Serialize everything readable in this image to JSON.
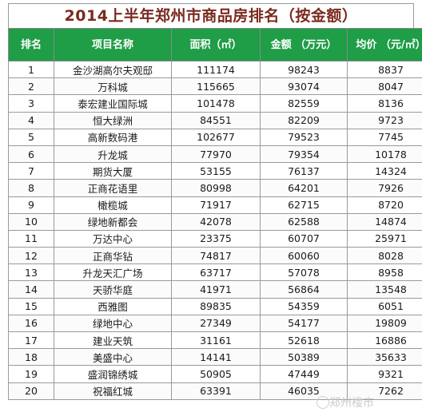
{
  "title": "2014上半年郑州市商品房排名（按金额）",
  "columns": {
    "rank": "排名",
    "name": "项目名称",
    "area": "面积（㎡）",
    "amount": "金额 （万元）",
    "avg": "均价 （元/㎡）"
  },
  "rows": [
    {
      "rank": "1",
      "name": "金沙湖高尔夫观邸",
      "area": "111174",
      "amount": "98243",
      "avg": "8837"
    },
    {
      "rank": "2",
      "name": "万科城",
      "area": "115665",
      "amount": "93074",
      "avg": "8047"
    },
    {
      "rank": "3",
      "name": "泰宏建业国际城",
      "area": "101478",
      "amount": "82559",
      "avg": "8136"
    },
    {
      "rank": "4",
      "name": "恒大绿洲",
      "area": "84551",
      "amount": "82209",
      "avg": "9723"
    },
    {
      "rank": "5",
      "name": "高新数码港",
      "area": "102677",
      "amount": "79523",
      "avg": "7745"
    },
    {
      "rank": "6",
      "name": "升龙城",
      "area": "77970",
      "amount": "79354",
      "avg": "10178"
    },
    {
      "rank": "7",
      "name": "期货大厦",
      "area": "53155",
      "amount": "76137",
      "avg": "14324"
    },
    {
      "rank": "8",
      "name": "正商花语里",
      "area": "80998",
      "amount": "64201",
      "avg": "7926"
    },
    {
      "rank": "9",
      "name": "橄榄城",
      "area": "71917",
      "amount": "62715",
      "avg": "8720"
    },
    {
      "rank": "10",
      "name": "绿地新都会",
      "area": "42078",
      "amount": "62588",
      "avg": "14874"
    },
    {
      "rank": "11",
      "name": "万达中心",
      "area": "23375",
      "amount": "60707",
      "avg": "25971"
    },
    {
      "rank": "12",
      "name": "正商华钻",
      "area": "74817",
      "amount": "60060",
      "avg": "8028"
    },
    {
      "rank": "13",
      "name": "升龙天汇广场",
      "area": "63717",
      "amount": "57078",
      "avg": "8958"
    },
    {
      "rank": "14",
      "name": "天骄华庭",
      "area": "41971",
      "amount": "56864",
      "avg": "13548"
    },
    {
      "rank": "15",
      "name": "西雅图",
      "area": "89835",
      "amount": "54359",
      "avg": "6051"
    },
    {
      "rank": "16",
      "name": "绿地中心",
      "area": "27349",
      "amount": "54177",
      "avg": "19809"
    },
    {
      "rank": "17",
      "name": "建业天筑",
      "area": "31161",
      "amount": "52618",
      "avg": "16886"
    },
    {
      "rank": "18",
      "name": "美盛中心",
      "area": "14141",
      "amount": "50389",
      "avg": "35633"
    },
    {
      "rank": "19",
      "name": "盛润锦绣城",
      "area": "50905",
      "amount": "47449",
      "avg": "9321"
    },
    {
      "rank": "20",
      "name": "祝福红城",
      "area": "63391",
      "amount": "46035",
      "avg": "7262"
    }
  ],
  "watermark": "郑州楼市"
}
